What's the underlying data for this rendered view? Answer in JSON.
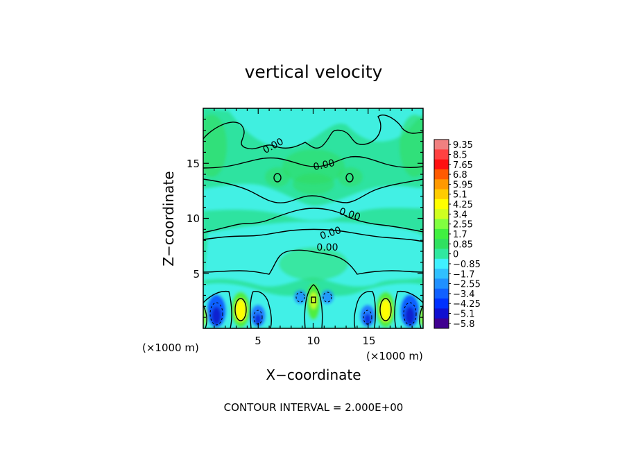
{
  "chart_data": {
    "type": "heatmap",
    "title": "vertical velocity",
    "xlabel": "X−coordinate",
    "ylabel": "Z−coordinate",
    "x_unit_left": "(×1000 m)",
    "x_unit_right": "(×1000 m)",
    "footer": "CONTOUR INTERVAL = 2.000E+00",
    "xlim": [
      0,
      20
    ],
    "ylim": [
      0,
      20
    ],
    "x_ticks": [
      {
        "value": 5,
        "label": "5"
      },
      {
        "value": 10,
        "label": "10"
      },
      {
        "value": 15,
        "label": "15"
      }
    ],
    "y_ticks": [
      {
        "value": 5,
        "label": "5"
      },
      {
        "value": 10,
        "label": "10"
      },
      {
        "value": 15,
        "label": "15"
      }
    ],
    "colorbar": {
      "labels": [
        "9.35",
        "8.5",
        "7.65",
        "6.8",
        "5.95",
        "5.1",
        "4.25",
        "3.4",
        "2.55",
        "1.7",
        "0.85",
        "0",
        "−0.85",
        "−1.7",
        "−2.55",
        "−3.4",
        "−4.25",
        "−5.1",
        "−5.8"
      ],
      "colors": [
        "#f08080",
        "#ff4040",
        "#ff1010",
        "#ff5a00",
        "#ff9900",
        "#ffcc00",
        "#ffff00",
        "#cfff20",
        "#80ff40",
        "#40ef40",
        "#30e060",
        "#30e8a0",
        "#40f0ff",
        "#30c0ff",
        "#2090ff",
        "#1060ff",
        "#0030ff",
        "#1010d0",
        "#400090"
      ]
    },
    "contour_labels": [
      {
        "text": "0.00",
        "x": 6.5,
        "z": 16.5
      },
      {
        "text": "0.00",
        "x": 10.8,
        "z": 14.7
      },
      {
        "text": "0.00",
        "x": 13.3,
        "z": 10.3
      },
      {
        "text": "0.00",
        "x": 11.4,
        "z": 8.6
      },
      {
        "text": "0.00",
        "x": 11.1,
        "z": 7.3
      }
    ]
  }
}
